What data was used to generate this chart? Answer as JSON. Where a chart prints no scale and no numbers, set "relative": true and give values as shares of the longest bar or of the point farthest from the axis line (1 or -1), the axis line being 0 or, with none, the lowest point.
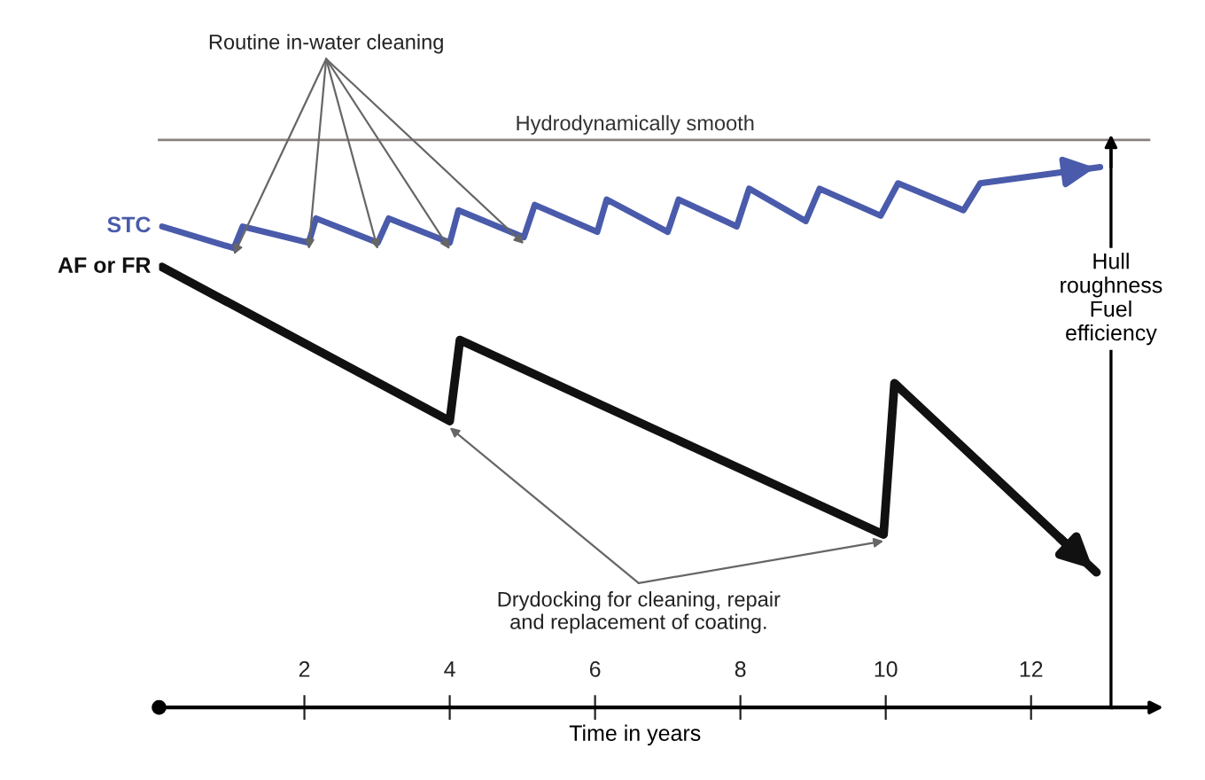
{
  "chart_data": {
    "type": "line",
    "relative": true,
    "xlabel": "Time in years",
    "ylabel": "Hull roughness Fuel efficiency",
    "xlim": [
      0,
      13.1
    ],
    "xticks": [
      2,
      4,
      6,
      8,
      10,
      12
    ],
    "legend": false,
    "marker": "none",
    "line_style": "solid",
    "series": [
      {
        "name": "STC",
        "color": "#4a5bab",
        "x": [
          0.04,
          1.03,
          1.15,
          2.06,
          2.16,
          3.01,
          3.16,
          4.0,
          4.12,
          5.02,
          5.17,
          6.03,
          6.16,
          7.0,
          7.15,
          7.95,
          8.12,
          8.9,
          9.09,
          9.93,
          10.17,
          11.07,
          11.3,
          12.95
        ],
        "values": [
          0.89,
          0.85,
          0.89,
          0.86,
          0.905,
          0.86,
          0.905,
          0.86,
          0.92,
          0.87,
          0.93,
          0.88,
          0.94,
          0.88,
          0.94,
          0.89,
          0.96,
          0.9,
          0.96,
          0.91,
          0.97,
          0.92,
          0.97,
          1.0
        ]
      },
      {
        "name": "AF or FR",
        "color": "#111111",
        "x": [
          0.04,
          4.0,
          4.14,
          9.97,
          10.12,
          12.9
        ],
        "values": [
          0.815,
          0.53,
          0.68,
          0.32,
          0.6,
          0.25
        ]
      }
    ],
    "ref_lines": [
      {
        "axis": "y",
        "value": 1.05,
        "label": "Hydrodynamically smooth",
        "color": "#8a8080"
      }
    ],
    "annotations": [
      {
        "text": "Routine in-water cleaning",
        "x": 1.03,
        "y": 0.85
      },
      {
        "text": "Drydocking for cleaning, repair\nand replacement of coating.",
        "x": 4.0,
        "y": 0.53
      }
    ]
  }
}
